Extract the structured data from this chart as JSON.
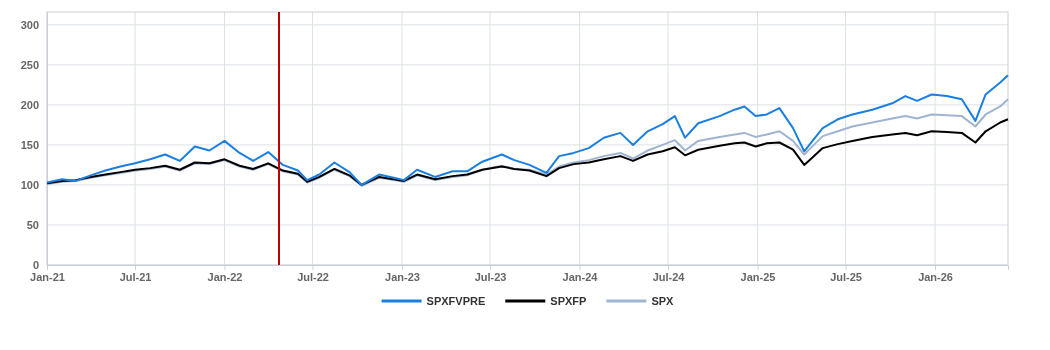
{
  "chart_data": {
    "type": "line",
    "x": [
      "2021-01-01",
      "2021-02-01",
      "2021-03-01",
      "2021-04-01",
      "2021-05-01",
      "2021-06-01",
      "2021-07-01",
      "2021-08-01",
      "2021-09-01",
      "2021-10-01",
      "2021-11-01",
      "2021-12-01",
      "2022-01-01",
      "2022-02-01",
      "2022-03-01",
      "2022-04-01",
      "2022-05-01",
      "2022-06-01",
      "2022-06-20",
      "2022-07-15",
      "2022-08-15",
      "2022-09-15",
      "2022-10-10",
      "2022-11-15",
      "2022-12-15",
      "2023-01-05",
      "2023-02-01",
      "2023-03-10",
      "2023-04-15",
      "2023-05-15",
      "2023-06-15",
      "2023-07-25",
      "2023-08-20",
      "2023-09-20",
      "2023-10-25",
      "2023-11-20",
      "2023-12-20",
      "2024-01-20",
      "2024-02-20",
      "2024-03-25",
      "2024-04-20",
      "2024-05-20",
      "2024-06-20",
      "2024-07-15",
      "2024-08-05",
      "2024-09-01",
      "2024-10-15",
      "2024-11-15",
      "2024-12-05",
      "2024-12-28",
      "2025-01-20",
      "2025-02-15",
      "2025-03-15",
      "2025-04-07",
      "2025-04-20",
      "2025-05-15",
      "2025-06-15",
      "2025-07-15",
      "2025-08-25",
      "2025-10-05",
      "2025-11-01",
      "2025-11-25",
      "2025-12-25",
      "2026-01-25",
      "2026-02-25",
      "2026-03-25",
      "2026-04-15",
      "2026-05-15",
      "2026-05-31"
    ],
    "series": [
      {
        "name": "SPXFVPRE",
        "color": "#1a7fe0",
        "values": [
          103,
          107,
          105,
          112,
          118,
          123,
          127,
          132,
          138,
          130,
          148,
          143,
          155,
          140,
          130,
          141,
          125,
          118,
          106,
          113,
          128,
          116,
          100,
          113,
          109,
          106,
          119,
          110,
          117,
          117,
          129,
          138,
          131,
          125,
          115,
          136,
          140,
          146,
          159,
          165,
          150,
          167,
          176,
          186,
          159,
          177,
          186,
          194,
          198,
          186,
          188,
          196,
          171,
          142,
          152,
          171,
          182,
          188,
          194,
          202,
          211,
          205,
          213,
          211,
          207,
          180,
          213,
          228,
          237
        ]
      },
      {
        "name": "SPXFP",
        "color": "#000000",
        "values": [
          102,
          105,
          106,
          110,
          113,
          116,
          119,
          121,
          124,
          119,
          128,
          127,
          132,
          124,
          120,
          127,
          118,
          114,
          104,
          110,
          120,
          112,
          100,
          110,
          107,
          105,
          113,
          107,
          111,
          113,
          119,
          123,
          120,
          118,
          111,
          121,
          126,
          128,
          132,
          136,
          130,
          138,
          142,
          147,
          137,
          144,
          149,
          152,
          153,
          148,
          152,
          153,
          144,
          125,
          132,
          146,
          151,
          155,
          160,
          163,
          165,
          162,
          167,
          166,
          165,
          153,
          167,
          178,
          182
        ]
      },
      {
        "name": "SPX",
        "color": "#9fb4d0",
        "values": [
          101,
          104,
          105,
          109,
          112,
          115,
          118,
          120,
          123,
          118,
          127,
          126,
          131,
          123,
          119,
          126,
          117,
          113,
          103,
          109,
          119,
          111,
          99,
          109,
          106,
          104,
          112,
          106,
          110,
          112,
          119,
          124,
          120,
          119,
          113,
          123,
          128,
          131,
          136,
          140,
          133,
          143,
          150,
          156,
          143,
          155,
          160,
          163,
          165,
          160,
          163,
          167,
          155,
          138,
          146,
          161,
          167,
          173,
          178,
          183,
          186,
          183,
          188,
          187,
          186,
          173,
          188,
          198,
          207
        ]
      }
    ],
    "xlim": [
      "2021-01-01",
      "2026-05-31"
    ],
    "xticks": [
      {
        "value": "2021-01-01",
        "label": "Jan-21"
      },
      {
        "value": "2021-07-01",
        "label": "Jul-21"
      },
      {
        "value": "2022-01-01",
        "label": "Jan-22"
      },
      {
        "value": "2022-07-01",
        "label": "Jul-22"
      },
      {
        "value": "2023-01-01",
        "label": "Jan-23"
      },
      {
        "value": "2023-07-01",
        "label": "Jul-23"
      },
      {
        "value": "2024-01-01",
        "label": "Jan-24"
      },
      {
        "value": "2024-07-01",
        "label": "Jul-24"
      },
      {
        "value": "2025-01-01",
        "label": "Jan-25"
      },
      {
        "value": "2025-07-01",
        "label": "Jul-25"
      },
      {
        "value": "2026-01-01",
        "label": "Jan-26"
      }
    ],
    "ylim": [
      0,
      316
    ],
    "yticks": [
      0,
      50,
      100,
      150,
      200,
      250,
      300
    ],
    "ref_lines": [
      {
        "axis": "x",
        "value": "2022-04-23",
        "color": "#c00000"
      }
    ],
    "grid": true,
    "legend": "bottom",
    "marker": "none",
    "line_style": "solid"
  }
}
